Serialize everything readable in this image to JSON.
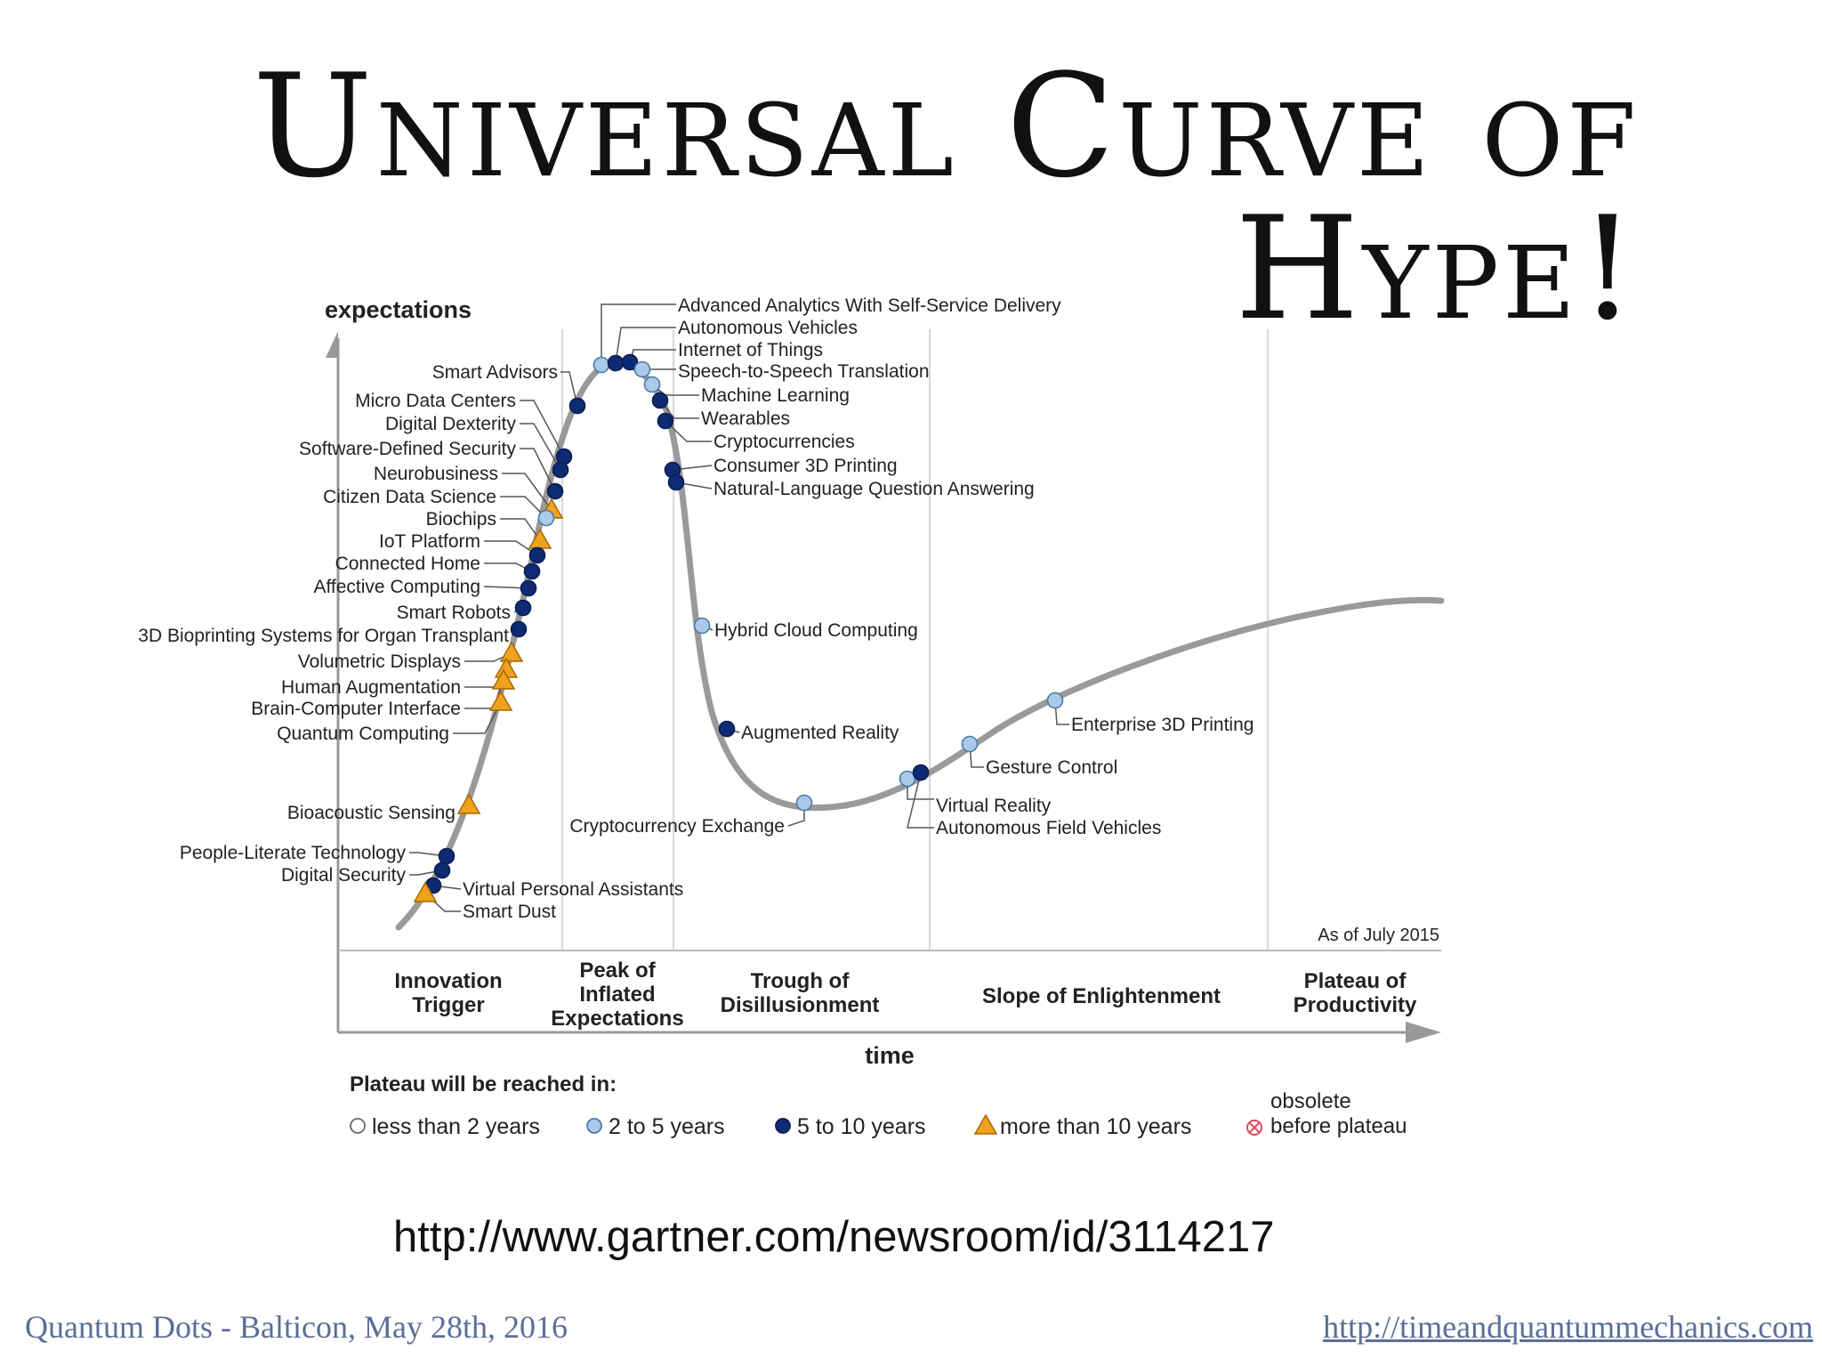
{
  "slide": {
    "title_line1": "Universal Curve of",
    "title_line2": "Hype!",
    "source_url": "http://www.gartner.com/newsroom/id/3114217",
    "footer_left": "Quantum Dots - Balticon, May 28th, 2016",
    "footer_right": "http://timeandquantummechanics.com"
  },
  "colors": {
    "curve": "#9a9a9a",
    "dark_blue": "#0d2a73",
    "light_blue": "#a9cbe8",
    "orange": "#f0a11e",
    "obsolete": "#e0485a"
  },
  "chart_data": {
    "type": "scatter",
    "ylabel": "expectations",
    "xlabel": "time",
    "as_of": "As of July 2015",
    "phases": [
      "Innovation Trigger",
      "Peak of Inflated Expectations",
      "Trough of Disillusionment",
      "Slope of Enlightenment",
      "Plateau of Productivity"
    ],
    "legend": {
      "title": "Plateau will be reached in:",
      "items": [
        {
          "label": "less than 2 years",
          "marker": "circle-white"
        },
        {
          "label": "2 to 5 years",
          "marker": "circle-light"
        },
        {
          "label": "5 to 10 years",
          "marker": "circle-dark"
        },
        {
          "label": "more than 10 years",
          "marker": "triangle"
        },
        {
          "label": "obsolete before plateau",
          "marker": "obsolete"
        }
      ]
    },
    "technologies": [
      {
        "name": "Advanced Analytics With Self-Service Delivery",
        "plateau": "2 to 5 years"
      },
      {
        "name": "Autonomous Vehicles",
        "plateau": "5 to 10 years"
      },
      {
        "name": "Internet of Things",
        "plateau": "5 to 10 years"
      },
      {
        "name": "Speech-to-Speech Translation",
        "plateau": "2 to 5 years"
      },
      {
        "name": "Machine Learning",
        "plateau": "2 to 5 years"
      },
      {
        "name": "Wearables",
        "plateau": "5 to 10 years"
      },
      {
        "name": "Cryptocurrencies",
        "plateau": "5 to 10 years"
      },
      {
        "name": "Consumer 3D Printing",
        "plateau": "5 to 10 years"
      },
      {
        "name": "Natural-Language Question Answering",
        "plateau": "5 to 10 years"
      },
      {
        "name": "Smart Advisors",
        "plateau": "5 to 10 years"
      },
      {
        "name": "Micro Data Centers",
        "plateau": "5 to 10 years"
      },
      {
        "name": "Digital Dexterity",
        "plateau": "5 to 10 years"
      },
      {
        "name": "Software-Defined Security",
        "plateau": "5 to 10 years"
      },
      {
        "name": "Neurobusiness",
        "plateau": "more than 10 years"
      },
      {
        "name": "Citizen Data Science",
        "plateau": "2 to 5 years"
      },
      {
        "name": "Biochips",
        "plateau": "more than 10 years"
      },
      {
        "name": "IoT Platform",
        "plateau": "5 to 10 years"
      },
      {
        "name": "Connected Home",
        "plateau": "5 to 10 years"
      },
      {
        "name": "Affective Computing",
        "plateau": "5 to 10 years"
      },
      {
        "name": "Smart Robots",
        "plateau": "5 to 10 years"
      },
      {
        "name": "3D Bioprinting Systems for Organ Transplant",
        "plateau": "5 to 10 years"
      },
      {
        "name": "Volumetric Displays",
        "plateau": "more than 10 years"
      },
      {
        "name": "Human Augmentation",
        "plateau": "more than 10 years"
      },
      {
        "name": "Brain-Computer Interface",
        "plateau": "more than 10 years"
      },
      {
        "name": "Quantum Computing",
        "plateau": "more than 10 years"
      },
      {
        "name": "Bioacoustic Sensing",
        "plateau": "more than 10 years"
      },
      {
        "name": "People-Literate Technology",
        "plateau": "5 to 10 years"
      },
      {
        "name": "Digital Security",
        "plateau": "5 to 10 years"
      },
      {
        "name": "Virtual Personal Assistants",
        "plateau": "5 to 10 years"
      },
      {
        "name": "Smart Dust",
        "plateau": "more than 10 years"
      },
      {
        "name": "Hybrid Cloud Computing",
        "plateau": "2 to 5 years"
      },
      {
        "name": "Augmented Reality",
        "plateau": "5 to 10 years"
      },
      {
        "name": "Cryptocurrency Exchange",
        "plateau": "2 to 5 years"
      },
      {
        "name": "Virtual Reality",
        "plateau": "2 to 5 years"
      },
      {
        "name": "Autonomous Field Vehicles",
        "plateau": "5 to 10 years"
      },
      {
        "name": "Gesture Control",
        "plateau": "2 to 5 years"
      },
      {
        "name": "Enterprise 3D Printing",
        "plateau": "2 to 5 years"
      }
    ]
  }
}
